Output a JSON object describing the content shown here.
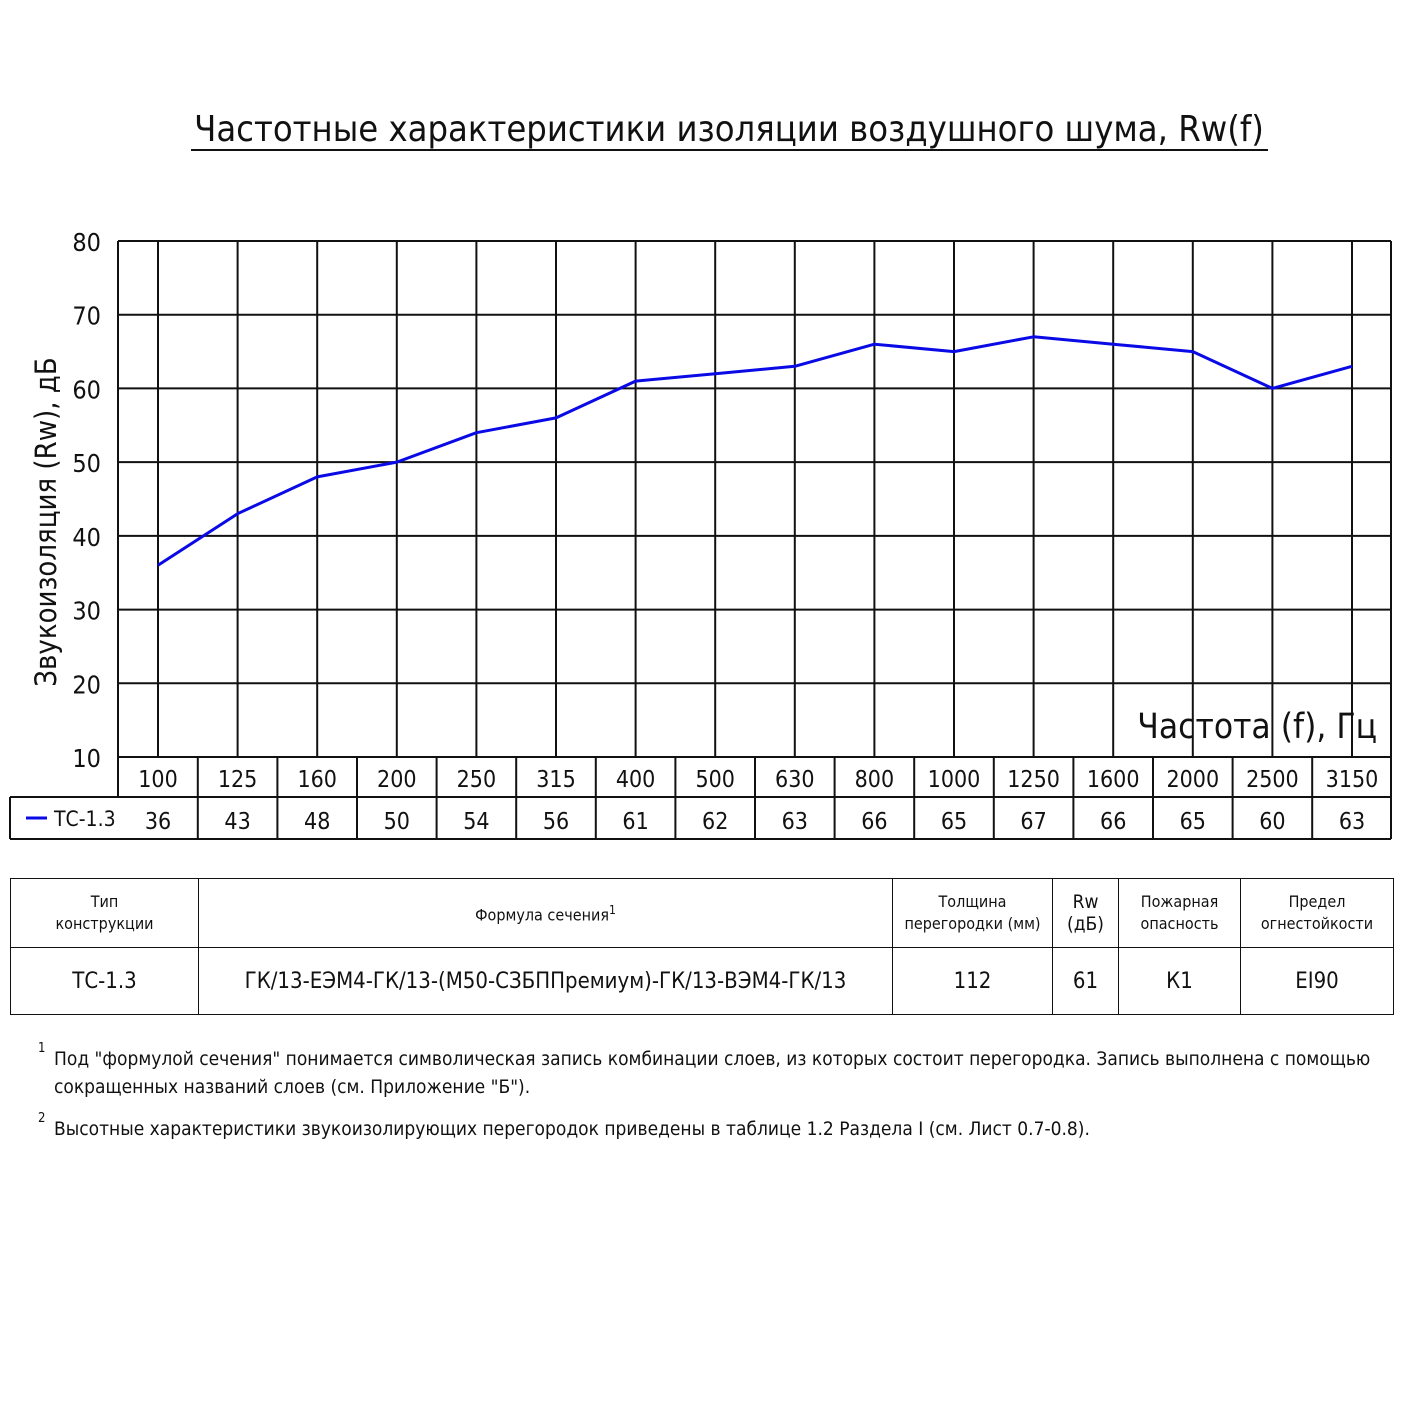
{
  "chart_data": {
    "type": "line",
    "title": "Частотные характеристики изоляции воздушного шума, Rw(f)",
    "ylabel": "Звукоизоляция (Rw), дБ",
    "xlabel": "Частота (f), Гц",
    "ylim": [
      10,
      80
    ],
    "yticks": [
      "80",
      "70",
      "60",
      "50",
      "40",
      "30",
      "20",
      "10"
    ],
    "grid": true,
    "categories": [
      "100",
      "125",
      "160",
      "200",
      "250",
      "315",
      "400",
      "500",
      "630",
      "800",
      "1000",
      "1250",
      "1600",
      "2000",
      "2500",
      "3150"
    ],
    "series": [
      {
        "name": "ТС-1.3",
        "color": "#0a0ae6",
        "values": [
          36,
          43,
          48,
          50,
          54,
          56,
          61,
          62,
          63,
          66,
          65,
          67,
          66,
          65,
          60,
          63
        ]
      }
    ]
  },
  "spec_table": {
    "headers": {
      "type_line1": "Тип",
      "type_line2": "конструкции",
      "formula": "Формула сечения",
      "formula_note": "1",
      "thickness_line1": "Толщина",
      "thickness_line2": "перегородки (мм)",
      "rw_line1": "Rw",
      "rw_line2": "(дБ)",
      "fire_line1": "Пожарная",
      "fire_line2": "опасность",
      "limit_line1": "Предел",
      "limit_line2": "огнестойкости"
    },
    "row": {
      "type": "ТС-1.3",
      "formula": "ГК/13-ЕЭМ4-ГК/13-(М50-СЗБППремиум)-ГК/13-ВЭМ4-ГК/13",
      "thickness": "112",
      "rw": "61",
      "fire": "К1",
      "limit": "EI90"
    }
  },
  "footnotes": [
    {
      "mark": "1",
      "text": "Под \"формулой сечения\" понимается символическая запись комбинации слоев, из которых состоит перегородка. Запись выполнена с помощью сокращенных названий слоев (см. Приложение \"Б\")."
    },
    {
      "mark": "2",
      "text": "Высотные характеристики звукоизолирующих перегородок приведены в таблице 1.2 Раздела I (см. Лист 0.7-0.8)."
    }
  ]
}
